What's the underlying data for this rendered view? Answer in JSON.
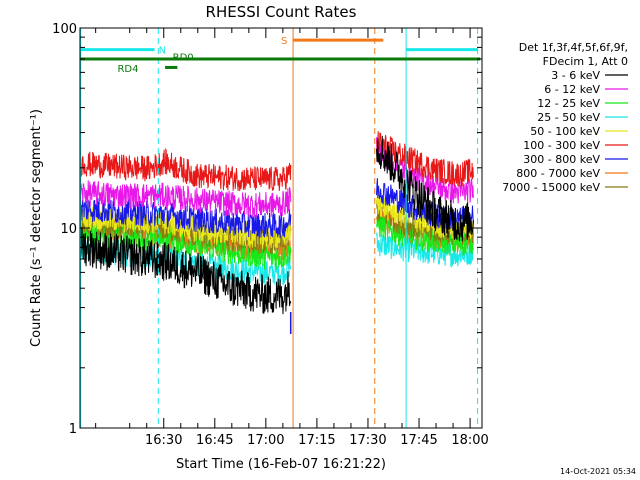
{
  "chart_data": {
    "type": "line",
    "title": "RHESSI Count Rates",
    "xlabel": "Start Time (16-Feb-07 16:21:22)",
    "ylabel": "Count Rate (s⁻¹ detector segment⁻¹)",
    "yscale": "log",
    "ylim": [
      1,
      100
    ],
    "xlim_minutes": [
      965.4,
      1083.5
    ],
    "x_tick_labels": [
      "16:30",
      "16:45",
      "17:00",
      "17:15",
      "17:30",
      "17:45",
      "18:00"
    ],
    "x_tick_minutes": [
      990,
      1005,
      1020,
      1035,
      1050,
      1065,
      1080
    ],
    "y_tick_labels": [
      "1",
      "10",
      "100"
    ],
    "y_tick_values": [
      1,
      10,
      100
    ],
    "legend_header": [
      "Det 1f,3f,4f,5f,6f,9f,",
      "FDecim 1, Att 0"
    ],
    "legend_placement": "right",
    "gap_minutes": [
      1028.0,
      1052.0
    ],
    "series": [
      {
        "name": "3 - 6 keV",
        "color": "#000000",
        "x": [
          965.4,
          977,
          986,
          990,
          1000,
          1010,
          1020,
          1025,
          1027.4,
          1052.5,
          1058,
          1064,
          1070,
          1077,
          1081
        ],
        "y": [
          8.2,
          7.4,
          7.0,
          6.8,
          6.0,
          5.0,
          4.6,
          4.6,
          5.2,
          26,
          20,
          15,
          12,
          10.5,
          11
        ]
      },
      {
        "name": "6 - 12 keV",
        "color": "#e818e8",
        "x": [
          965.4,
          977,
          986,
          990,
          1000,
          1010,
          1020,
          1025,
          1027.4,
          1052.5,
          1058,
          1064,
          1070,
          1077,
          1081
        ],
        "y": [
          15,
          14.6,
          14.5,
          14.5,
          13.8,
          13.2,
          13.0,
          13.2,
          14.0,
          25,
          21,
          18,
          16,
          15,
          15.5
        ]
      },
      {
        "name": "12 - 25 keV",
        "color": "#18e818",
        "x": [
          965.4,
          977,
          986,
          990,
          1000,
          1010,
          1020,
          1025,
          1027.4,
          1052.5,
          1058,
          1064,
          1070,
          1077,
          1081
        ],
        "y": [
          9.4,
          9.1,
          8.9,
          8.9,
          8.2,
          7.6,
          7.2,
          7.2,
          7.8,
          10.5,
          9.6,
          9.0,
          8.6,
          8.3,
          8.6
        ]
      },
      {
        "name": "25 - 50 keV",
        "color": "#18e8e8",
        "x": [
          965.4,
          977,
          986,
          990,
          1000,
          1010,
          1020,
          1025,
          1027.4,
          1052.5,
          1058,
          1064,
          1070,
          1077,
          1081
        ],
        "y": [
          7.8,
          7.5,
          7.2,
          7.1,
          6.6,
          6.2,
          6.0,
          6.0,
          6.6,
          8.4,
          8.0,
          7.7,
          7.5,
          7.4,
          7.6
        ]
      },
      {
        "name": "50 - 100 keV",
        "color": "#e8e818",
        "x": [
          965.4,
          977,
          986,
          990,
          1000,
          1010,
          1020,
          1025,
          1027.4,
          1052.5,
          1058,
          1064,
          1070,
          1077,
          1081
        ],
        "y": [
          11.4,
          11.0,
          10.8,
          10.7,
          9.8,
          9.4,
          9.1,
          9.1,
          9.8,
          13.5,
          12.0,
          11.0,
          10.4,
          10.0,
          10.3
        ]
      },
      {
        "name": "100 - 300 keV",
        "color": "#e81818",
        "x": [
          965.4,
          977,
          986,
          990,
          1000,
          1010,
          1020,
          1025,
          1027.4,
          1052.5,
          1058,
          1064,
          1070,
          1077,
          1081
        ],
        "y": [
          21,
          20.2,
          19.8,
          21.5,
          18.2,
          17.8,
          17.5,
          17.5,
          19.0,
          27,
          24,
          21.5,
          19.5,
          18.5,
          19.5
        ]
      },
      {
        "name": "300 - 800 keV",
        "color": "#1818e8",
        "x": [
          965.4,
          977,
          986,
          990,
          1000,
          1010,
          1020,
          1025,
          1027.4,
          1052.5,
          1058,
          1064,
          1070,
          1077,
          1081
        ],
        "y": [
          12.5,
          12.1,
          11.8,
          11.8,
          11.0,
          10.6,
          10.3,
          10.3,
          11.0,
          16,
          14,
          12.5,
          11.5,
          11.0,
          11.4
        ]
      },
      {
        "name": "800 - 7000 keV",
        "color": "#f07818",
        "x": [
          965.4,
          977,
          986,
          990,
          1000,
          1010,
          1020,
          1025,
          1027.4,
          1052.5,
          1058,
          1064,
          1070,
          1077,
          1081
        ],
        "y": [
          10.1,
          9.6,
          9.4,
          9.3,
          8.5,
          8.1,
          8.0,
          8.0,
          8.6,
          11.5,
          10.2,
          9.4,
          9.0,
          8.8,
          9.0
        ]
      },
      {
        "name": "7000 - 15000 keV",
        "color": "#8a7a10",
        "x": [
          965.4,
          977,
          986,
          990,
          1000,
          1010,
          1020,
          1025,
          1027.4,
          1052.5,
          1058,
          1064,
          1070,
          1077,
          1081
        ],
        "y": [
          10.8,
          10.3,
          10.1,
          10.0,
          9.2,
          8.8,
          8.6,
          8.6,
          9.3,
          12.5,
          11.0,
          10.2,
          9.7,
          9.4,
          9.7
        ]
      }
    ],
    "vertical_markers": [
      {
        "x": 965.6,
        "color": "#18e8e8",
        "style": "solid"
      },
      {
        "x": 988.4,
        "color": "#18e8e8",
        "style": "dashed"
      },
      {
        "x": 1028.0,
        "color": "#f07818",
        "style": "solid"
      },
      {
        "x": 1052.0,
        "color": "#f07818",
        "style": "dashed"
      },
      {
        "x": 1061.2,
        "color": "#18e8e8",
        "style": "solid"
      },
      {
        "x": 1082.2,
        "color": "#18e8e8",
        "style": "dashed"
      }
    ],
    "flag_bars": [
      {
        "label": "N",
        "color": "#18e8e8",
        "y": 78,
        "segments": [
          [
            965.6,
            987.3
          ],
          [
            1061.2,
            1082.2
          ]
        ],
        "label_x": 989.6,
        "label_y": 78
      },
      {
        "label": "RD0",
        "color": "#0a7a0a",
        "y": 70,
        "segments": [
          [
            965.6,
            1083.0
          ]
        ],
        "label_x": 995.7,
        "label_y": 72
      },
      {
        "label": "RD4",
        "color": "#0a7a0a",
        "y": 63.5,
        "segments": [
          [
            990.4,
            994.0
          ]
        ],
        "label_x": 979.5,
        "label_y": 63
      },
      {
        "label": "S",
        "color": "#f07818",
        "y": 87,
        "segments": [
          [
            1028.0,
            1054.5
          ]
        ],
        "label_x": 1025.4,
        "label_y": 87
      }
    ],
    "footer_timestamp": "14-Oct-2021 05:34"
  }
}
